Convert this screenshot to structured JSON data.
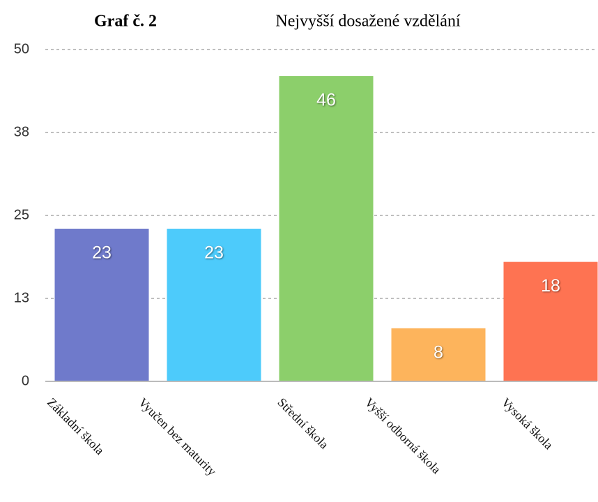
{
  "chart_data": {
    "type": "bar",
    "title": "Graf č. 2",
    "subtitle": "Nejvyšší dosažené vzdělání",
    "categories": [
      "Základní škola",
      "Vyučen bez maturity",
      "Střední škola",
      "Vyšší odborná škola",
      "Vysoká škola"
    ],
    "values": [
      23,
      23,
      46,
      8,
      18
    ],
    "colors": [
      "#6f7acb",
      "#4dcbfb",
      "#8ccf6b",
      "#fdb45c",
      "#fe7352"
    ],
    "ylim": [
      0,
      50
    ],
    "yticks": [
      0,
      {
        "value": 12.5,
        "label": "13"
      },
      25,
      {
        "value": 37.5,
        "label": "38"
      },
      50
    ],
    "grid": true
  }
}
